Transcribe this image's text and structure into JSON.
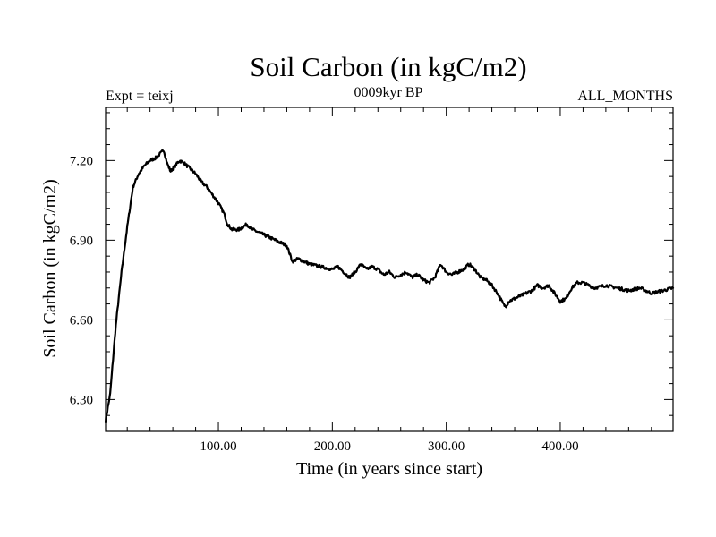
{
  "chart_data": {
    "type": "line",
    "title": "Soil Carbon (in kgC/m2)",
    "subtitle_left": "Expt = teixj",
    "subtitle_center": "0009kyr BP",
    "subtitle_right": "ALL_MONTHS",
    "xlabel": "Time (in years since start)",
    "ylabel": "Soil Carbon (in kgC/m2)",
    "xlim": [
      1,
      499
    ],
    "ylim": [
      6.18,
      7.4
    ],
    "xticks": [
      100,
      200,
      300,
      400
    ],
    "xtick_labels": [
      "100.00",
      "200.00",
      "300.00",
      "400.00"
    ],
    "yticks": [
      6.3,
      6.6,
      6.9,
      7.2
    ],
    "ytick_labels": [
      "6.30",
      "6.60",
      "6.90",
      "7.20"
    ],
    "grid": false,
    "series": [
      {
        "name": "Soil Carbon",
        "x": [
          1,
          5,
          10,
          15,
          20,
          25,
          30,
          35,
          40,
          45,
          50,
          52,
          55,
          58,
          62,
          66,
          70,
          75,
          80,
          85,
          90,
          95,
          100,
          105,
          108,
          112,
          118,
          125,
          130,
          140,
          150,
          160,
          165,
          170,
          180,
          190,
          200,
          205,
          210,
          215,
          220,
          225,
          230,
          235,
          240,
          245,
          250,
          255,
          260,
          265,
          270,
          275,
          280,
          285,
          290,
          295,
          300,
          305,
          310,
          315,
          320,
          325,
          330,
          335,
          340,
          345,
          350,
          352,
          355,
          360,
          365,
          370,
          375,
          380,
          385,
          390,
          395,
          400,
          405,
          410,
          415,
          420,
          425,
          430,
          440,
          450,
          460,
          470,
          480,
          490,
          499
        ],
        "y": [
          6.22,
          6.32,
          6.58,
          6.78,
          6.95,
          7.1,
          7.15,
          7.18,
          7.2,
          7.21,
          7.23,
          7.24,
          7.19,
          7.16,
          7.18,
          7.2,
          7.19,
          7.17,
          7.15,
          7.12,
          7.1,
          7.07,
          7.04,
          7.0,
          6.96,
          6.94,
          6.94,
          6.96,
          6.94,
          6.92,
          6.9,
          6.88,
          6.82,
          6.83,
          6.81,
          6.8,
          6.79,
          6.8,
          6.78,
          6.76,
          6.78,
          6.81,
          6.79,
          6.8,
          6.79,
          6.77,
          6.78,
          6.76,
          6.77,
          6.78,
          6.76,
          6.77,
          6.75,
          6.74,
          6.76,
          6.81,
          6.78,
          6.77,
          6.78,
          6.79,
          6.81,
          6.79,
          6.76,
          6.75,
          6.73,
          6.7,
          6.66,
          6.65,
          6.67,
          6.68,
          6.69,
          6.7,
          6.71,
          6.73,
          6.72,
          6.73,
          6.7,
          6.67,
          6.68,
          6.72,
          6.74,
          6.74,
          6.73,
          6.72,
          6.73,
          6.72,
          6.71,
          6.72,
          6.7,
          6.71,
          6.72
        ]
      }
    ]
  }
}
